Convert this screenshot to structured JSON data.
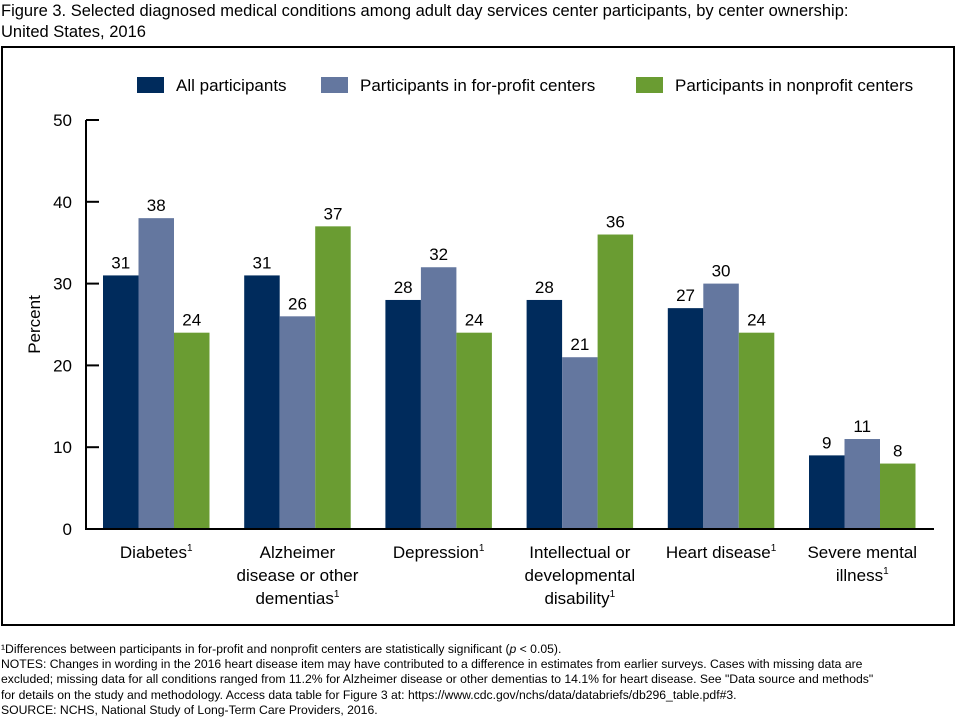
{
  "figure": {
    "title_line1": "Figure 3. Selected diagnosed medical conditions among adult day services center participants, by center ownership:",
    "title_line2": "United States, 2016"
  },
  "chart_data": {
    "type": "bar",
    "title": "Figure 3. Selected diagnosed medical conditions among adult day services center participants, by center ownership: United States, 2016",
    "xlabel": "",
    "ylabel": "Percent",
    "ylim": [
      0,
      50
    ],
    "yticks": [
      0,
      10,
      20,
      30,
      40,
      50
    ],
    "grid": false,
    "legend_position": "top",
    "categories": [
      [
        "Diabetes¹"
      ],
      [
        "Alzheimer",
        "disease or other",
        "dementias¹"
      ],
      [
        "Depression¹"
      ],
      [
        "Intellectual or",
        "developmental",
        "disability¹"
      ],
      [
        "Heart disease¹"
      ],
      [
        "Severe mental",
        "illness¹"
      ]
    ],
    "series": [
      {
        "name": "All participants",
        "color": "#002b5c",
        "values": [
          31,
          31,
          28,
          28,
          27,
          9
        ]
      },
      {
        "name": "Participants in for-profit centers",
        "color": "#64779f",
        "values": [
          38,
          26,
          32,
          21,
          30,
          11
        ]
      },
      {
        "name": "Participants in nonprofit centers",
        "color": "#6a9c32",
        "values": [
          24,
          37,
          24,
          36,
          24,
          8
        ]
      }
    ]
  },
  "footnotes": {
    "significance_prefix": "¹Differences between participants in for-profit and nonprofit centers are statistically significant (",
    "significance_p": "p",
    "significance_suffix": " < 0.05).",
    "notes_line1": "NOTES: Changes in wording in the 2016 heart disease item may have contributed to a difference in estimates from earlier surveys. Cases with missing data are",
    "notes_line2": "excluded; missing data for all conditions ranged from 11.2% for Alzheimer disease or other dementias to 14.1% for heart disease. See \"Data source and methods\"",
    "notes_line3": "for details on the study and methodology. Access data table for Figure 3 at: https://www.cdc.gov/nchs/data/databriefs/db296_table.pdf#3.",
    "source": "SOURCE: NCHS, National Study of Long-Term Care Providers, 2016."
  }
}
